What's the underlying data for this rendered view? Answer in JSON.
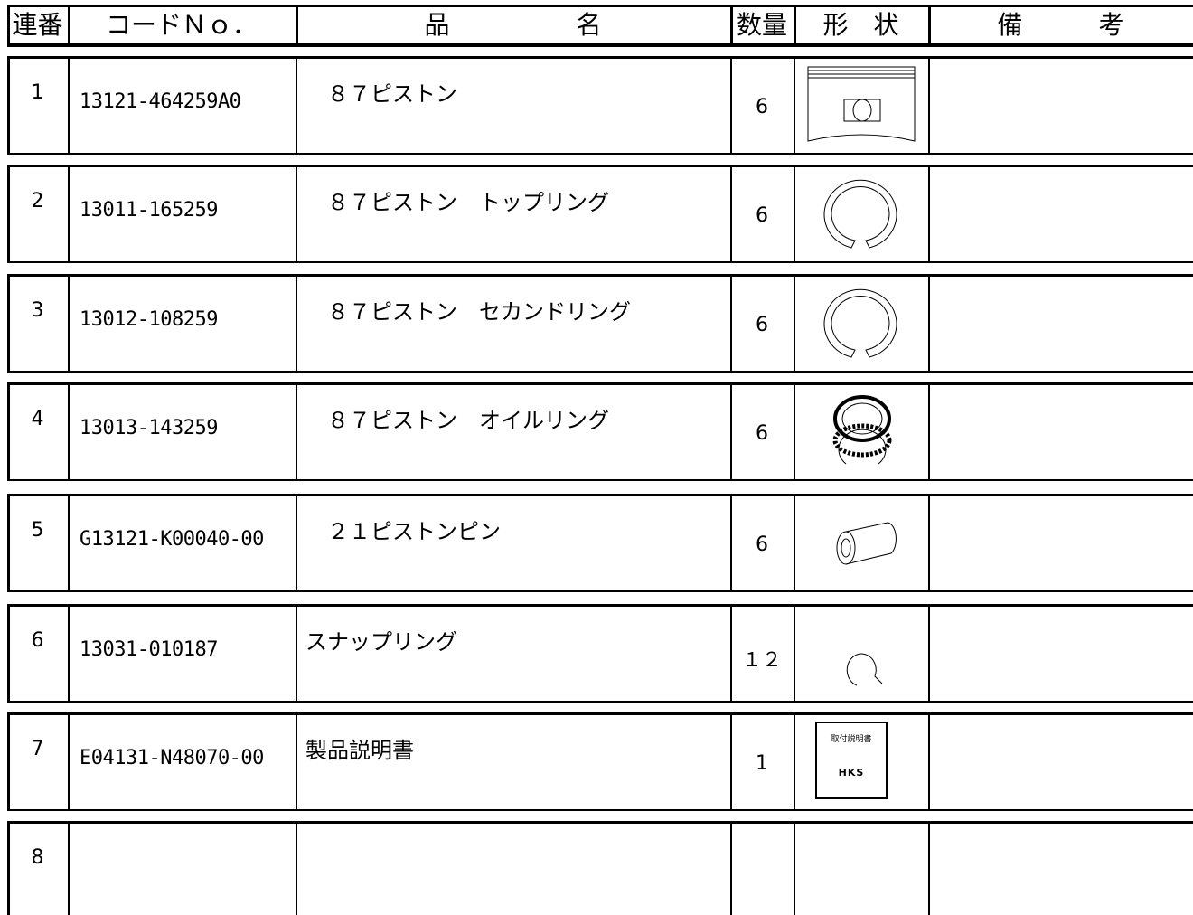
{
  "header": {
    "no": "連番",
    "code": "コードＮｏ．",
    "name": "品　　　　　名",
    "qty": "数量",
    "shape": "形　状",
    "note": "備　　　考"
  },
  "table": {
    "rows": [
      {
        "no": "1",
        "code": "13121-464259A0",
        "name": "　８７ピストン",
        "qty": "6"
      },
      {
        "no": "2",
        "code": "13011-165259",
        "name": "　８７ピストン　トップリング",
        "qty": "6"
      },
      {
        "no": "3",
        "code": "13012-108259",
        "name": "　８７ピストン　セカンドリング",
        "qty": "6"
      },
      {
        "no": "4",
        "code": "13013-143259",
        "name": "　８７ピストン　オイルリング",
        "qty": "6"
      },
      {
        "no": "5",
        "code": "G13121-K00040-00",
        "name": "　２１ピストンピン",
        "qty": "6"
      },
      {
        "no": "6",
        "code": "13031-010187",
        "name": "スナップリング",
        "qty": "１２"
      },
      {
        "no": "7",
        "code": "E04131-N48070-00",
        "name": "製品説明書",
        "qty": "1",
        "shape_label": "取付説明書",
        "shape_logo": "HKS"
      },
      {
        "no": "8"
      }
    ]
  }
}
